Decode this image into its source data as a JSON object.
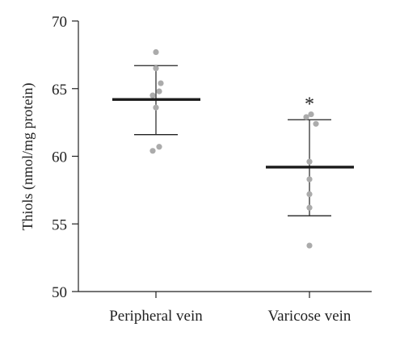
{
  "chart_data": {
    "type": "scatter",
    "title": "",
    "xlabel": "",
    "ylabel": "Thiols (nmol/mg protein)",
    "ylim": [
      50,
      70
    ],
    "yticks": [
      50,
      55,
      60,
      65,
      70
    ],
    "grid": false,
    "categories": [
      "Peripheral vein",
      "Varicose vein"
    ],
    "series": [
      {
        "category": "Peripheral vein",
        "points": [
          67.7,
          66.5,
          65.4,
          64.8,
          64.5,
          63.6,
          60.7,
          60.4
        ],
        "mean": 64.2,
        "error_upper": 66.7,
        "error_lower": 61.6,
        "annotation": ""
      },
      {
        "category": "Varicose vein",
        "points": [
          63.1,
          62.9,
          62.4,
          59.6,
          58.3,
          57.2,
          56.2,
          53.4
        ],
        "mean": 59.2,
        "error_upper": 62.7,
        "error_lower": 55.6,
        "annotation": "*"
      }
    ],
    "colors": {
      "points": "#ababab",
      "lines": "#222222",
      "mean_line": "#1a1a1a"
    }
  }
}
